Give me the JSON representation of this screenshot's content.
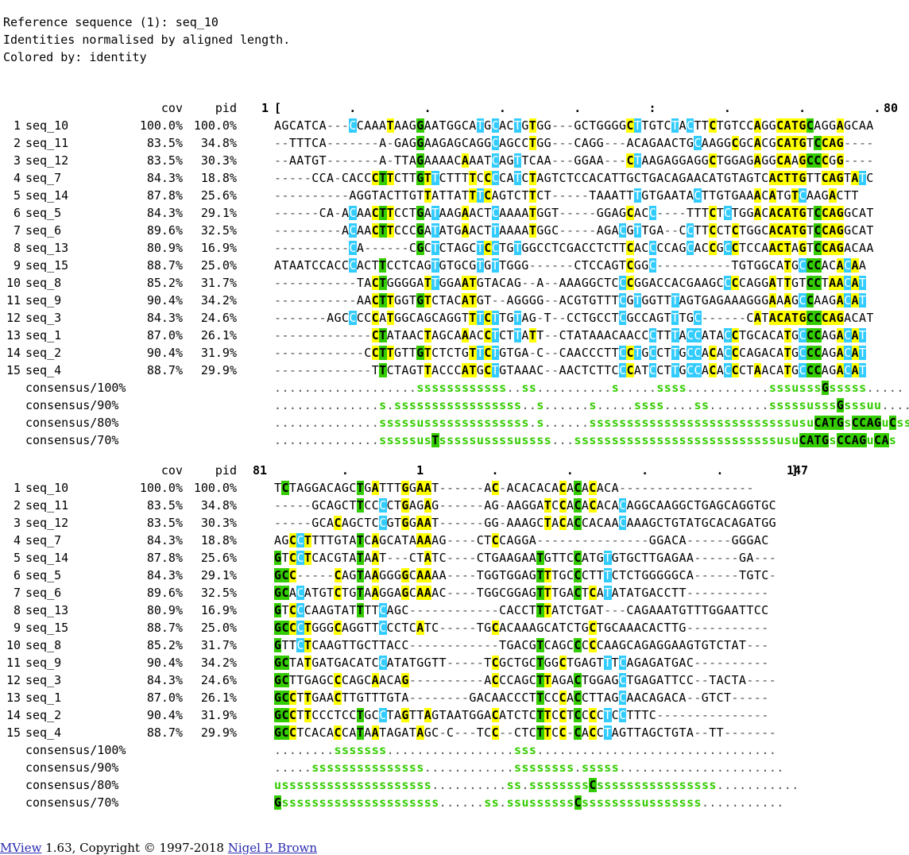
{
  "header": {
    "line1": "Reference sequence (1): seq_10",
    "line2": "Identities normalised by aligned length.",
    "line3": "Colored by: identity"
  },
  "columns": {
    "cov": "cov",
    "pid": "pid"
  },
  "colors": {
    "identical": "#33cc00",
    "similar": "#ffff00",
    "other": "#33ccff"
  },
  "blocks": [
    {
      "ruler_start": "1",
      "ruler": "[         .         .         .         .         :         .         .         .",
      "ruler_end": "80",
      "rows": [
        {
          "n": "1",
          "id": "seq_10",
          "cov": "100.0%",
          "pid": "100.0%",
          "seq": "AGCATCA---CCAAATAAGGAATGGCATGCACTGTGG---GCTGGGGCTTGTCTACTTCTGTCCAGGCATGCAGGAGCAA"
        },
        {
          "n": "2",
          "id": "seq_11",
          "cov": "83.5%",
          "pid": "34.8%",
          "seq": "--TTTCA-------A-GAGGAAGAGCAGGCAGCCTGG---CAGG---ACAGAACTGCAAGGCGCACGCATGTCCAG----"
        },
        {
          "n": "3",
          "id": "seq_12",
          "cov": "83.5%",
          "pid": "30.3%",
          "seq": "--AATGT-------A-TTAGAAAACAAATCAGTTCAA---GGAA---CTAAGAGGAGGCTGGAGAGGCAAGCCCGG----"
        },
        {
          "n": "4",
          "id": "seq_7",
          "cov": "84.3%",
          "pid": "18.8%",
          "seq": "-----CCA-CACCCTTCTTGTTCTTTTCCCCATCTAGTCTCCACATTGCTGACAGAACATGTAGTCACTTGTTCAGTATC"
        },
        {
          "n": "5",
          "id": "seq_14",
          "cov": "87.8%",
          "pid": "25.6%",
          "seq": "----------AGGTACTTGTTATTATTTCAGTCTTCT-----TAAATTTGTGAATACTTGTGAAACATGTCAAGACTT"
        },
        {
          "n": "6",
          "id": "seq_5",
          "cov": "84.3%",
          "pid": "29.1%",
          "seq": "------CA-ACAACTTCCTGATAAGAACTCAAAATGGT-----GGAGCACC----TTTCTCTGGACACATGTCCAGGCAT"
        },
        {
          "n": "7",
          "id": "seq_6",
          "cov": "89.6%",
          "pid": "32.5%",
          "seq": "---------ACAACTTCCCGATATGAACTTAAAATGGC-----AGACGTTGA--CCTTCCTCTGGCACATGTCCAGGCAT"
        },
        {
          "n": "8",
          "id": "seq_13",
          "cov": "80.9%",
          "pid": "16.9%",
          "seq": "----------CA------CGCTCTAGCTCCTGTGGCCTCGACCTCTTCACCCCAGCACCGCCTCCAACTAGTCCAGACAA"
        },
        {
          "n": "9",
          "id": "seq_15",
          "cov": "88.7%",
          "pid": "25.0%",
          "seq": "ATAATCCACCCACTTCCTCAGTGTGCGTGTTGGG------CTCCAGTCGGC----------TGTGGCATGCCCACACAA"
        },
        {
          "n": "10",
          "id": "seq_8",
          "cov": "85.2%",
          "pid": "31.7%",
          "seq": "-----------TACTGGGGATTGGAATGTACAG--A--AAAGGCTCCCGGACCACGAAGCCCCAGGATTGTCCTAACAT"
        },
        {
          "n": "11",
          "id": "seq_9",
          "cov": "90.4%",
          "pid": "34.2%",
          "seq": "-----------AACTTGGTGTCTACATGT--AGGGG--ACGTGTTTCGTGGTTTAGTGAGAAAGGGAAAGCCAAGACAT"
        },
        {
          "n": "12",
          "id": "seq_3",
          "cov": "84.3%",
          "pid": "24.6%",
          "seq": "-------AGCCCCCATGGCAGCAGGTTTCTTGTAG-T--CCTGCCTCGCCAGTTTGC------CATACATGCCCAGACAT"
        },
        {
          "n": "13",
          "id": "seq_1",
          "cov": "87.0%",
          "pid": "26.1%",
          "seq": "-------------CTATAACTAGCAAACCTCTTATT--CTATAAACAACCCTTTACCATACCTGCACATGCCCAGACAT"
        },
        {
          "n": "14",
          "id": "seq_2",
          "cov": "90.4%",
          "pid": "31.9%",
          "seq": "------------CCTTGTTGTCTCTGTTCTGTGA-C--CAACCCTTCCTGCCTTGCCACACCCAGACATGCCCAGACAT"
        },
        {
          "n": "15",
          "id": "seq_4",
          "cov": "88.7%",
          "pid": "29.9%",
          "seq": "-------------TTCTAGTTACCCATGCTGTAAAC--AACTCTTCCCATCCTTGCCACACCCTAACATGCCCAGACAT"
        }
      ],
      "consensus": [
        {
          "label": "consensus/100%",
          "seq": "...................ssssssssssss..ss..........s.....ssss...........sssusssGsssss....."
        },
        {
          "label": "consensus/90%",
          "seq": "..............s.sssssssssssssssss..s......s.....ssss....ss........sssssusssGsssuu...."
        },
        {
          "label": "consensus/80%",
          "seq": "..............sssssussssssssssssss.s......sssssssssssssssssssssssssssusuCATGsCCAGuCss"
        },
        {
          "label": "consensus/70%",
          "seq": "..............sssssusTsssssussssussss...sssssssssssssssssssssssssssusuCATGsCCAGuCAs"
        }
      ]
    },
    {
      "ruler_start": "81",
      "ruler": "         .         1         .         .         .         .         ]",
      "ruler_end": "147",
      "rows": [
        {
          "n": "1",
          "id": "seq_10",
          "cov": "100.0%",
          "pid": "100.0%",
          "seq": "TCTAGGACAGCTGATTTGGAAT------AC-ACACACACACACACA------------------"
        },
        {
          "n": "2",
          "id": "seq_11",
          "cov": "83.5%",
          "pid": "34.8%",
          "seq": "-----GCAGCTTCCCCTGAGAG------AG-AAGGATCCACACACACAGGCAAGGCTGAGCAGGTGC"
        },
        {
          "n": "3",
          "id": "seq_12",
          "cov": "83.5%",
          "pid": "30.3%",
          "seq": "-----GCACAGCTCCGTGGAAT------GG-AAAGCTACACCACAACAAAGCTGTATGCACAGATGG"
        },
        {
          "n": "4",
          "id": "seq_7",
          "cov": "84.3%",
          "pid": "18.8%",
          "seq": "AGCCTTTTGTATCAGCATAAAAG----CTCCAGGA---------------GGACA------GGGAC"
        },
        {
          "n": "5",
          "id": "seq_14",
          "cov": "87.8%",
          "pid": "25.6%",
          "seq": "GTCCTCACGTATAAT---CTATC----CTGAAGAATGTTCCATGTGTGCTTGAGAA------GA---"
        },
        {
          "n": "6",
          "id": "seq_5",
          "cov": "84.3%",
          "pid": "29.1%",
          "seq": "GCC-----CAGTAAGGGGCAAAA----TGGTGGAGTTTGCCCTTTCTCTGGGGGCA------TGTC-"
        },
        {
          "n": "7",
          "id": "seq_6",
          "cov": "89.6%",
          "pid": "32.5%",
          "seq": "GCACATGTCTGTAAGGAGCAAAC----TGGCGGAGTTTGACTCATATATGACCTT-----------"
        },
        {
          "n": "8",
          "id": "seq_13",
          "cov": "80.9%",
          "pid": "16.9%",
          "seq": "GTCCCAAGTATTTTCAGC------------CACCTTTATCTGAT---CAGAAATGTTTGGAATTCC"
        },
        {
          "n": "9",
          "id": "seq_15",
          "cov": "88.7%",
          "pid": "25.0%",
          "seq": "GCCCTGGGCAGGTTCCCTCATC-----TGCACAAAGCATCTGCTGCAAACACTTG-----------"
        },
        {
          "n": "10",
          "id": "seq_8",
          "cov": "85.2%",
          "pid": "31.7%",
          "seq": "GTTCTCAAGTTGCTTACC------------TGACGTCAGCCCCCAAGCAGAGGAAGTGTCTAT---"
        },
        {
          "n": "11",
          "id": "seq_9",
          "cov": "90.4%",
          "pid": "34.2%",
          "seq": "GCTATGATGACATCCATATGGTT-----TCGCTGCTGGCTGAGTTTCAGAGATGAC----------"
        },
        {
          "n": "12",
          "id": "seq_3",
          "cov": "84.3%",
          "pid": "24.6%",
          "seq": "GCTTGAGCCCAGCAACAG----------ACCCAGCTTAGACTGGAGCTGAGATTCC--TACTA----"
        },
        {
          "n": "13",
          "id": "seq_1",
          "cov": "87.0%",
          "pid": "26.1%",
          "seq": "GCCTTGAACTTGTTTGTA--------GACAACCCTTCCCACCTTAGCAACAGACA--GTCT-----"
        },
        {
          "n": "14",
          "id": "seq_2",
          "cov": "90.4%",
          "pid": "31.9%",
          "seq": "GCCTTCCCTCCTGCCTAGTTAGTAATGGACATCTCTTCCTCCCCTCCTTTC---------------"
        },
        {
          "n": "15",
          "id": "seq_4",
          "cov": "88.7%",
          "pid": "29.9%",
          "seq": "GCCTCACACCATAATAGATAGC-C---TCC--CTCTTCC-CACCTAGTTAGCTGTA--TT-------"
        }
      ],
      "consensus": [
        {
          "label": "consensus/100%",
          "seq": "........sssssss.................sss................................"
        },
        {
          "label": "consensus/90%",
          "seq": ".....sssssssssssssss............ssssssss.sssss......................"
        },
        {
          "label": "consensus/80%",
          "seq": "ussssssssssssssssssss..........ss.ssssssssCssssssssssssssss..........."
        },
        {
          "label": "consensus/70%",
          "seq": "Gsssssssssssssssssssss......ss.ssussssssCssssssssusssssss..........."
        }
      ]
    }
  ],
  "footer": {
    "mview_link": "MView",
    "text": " 1.63, Copyright © 1997-2018 ",
    "author_link": "Nigel P. Brown"
  }
}
